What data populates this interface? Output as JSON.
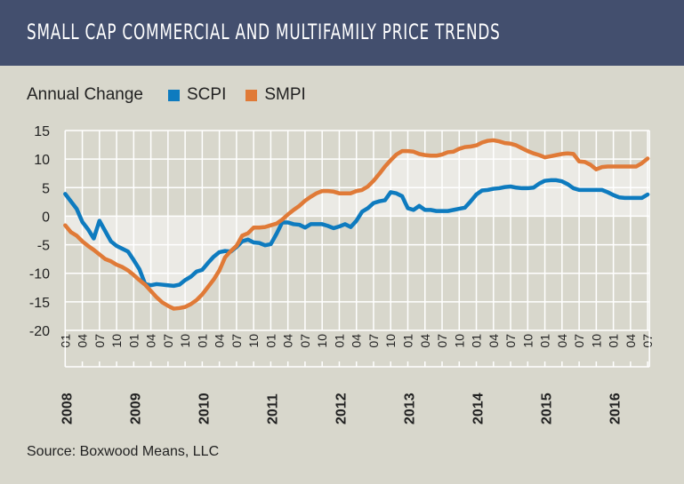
{
  "header": {
    "title": "SMALL CAP COMMERCIAL AND MULTIFAMILY PRICE TRENDS"
  },
  "legend": {
    "label": "Annual Change"
  },
  "source": "Source: Boxwood Means, LLC",
  "colors": {
    "header": "#434f6e",
    "background": "#d8d7cc",
    "scpi": "#0e7bbf",
    "smpi": "#e07a37",
    "band": "#ebeae5"
  },
  "chart_data": {
    "type": "line",
    "title": "SMALL CAP COMMERCIAL AND MULTIFAMILY PRICE TRENDS",
    "ylabel": "Annual Change",
    "ylim": [
      -20,
      15
    ],
    "yticks": [
      15,
      10,
      5,
      0,
      -5,
      -10,
      -15,
      -20
    ],
    "x_start": "2008-01",
    "x_end": "2016-07",
    "frequency": "monthly",
    "month_ticks": [
      "01",
      "04",
      "07",
      "10"
    ],
    "years": [
      "2008",
      "2009",
      "2010",
      "2011",
      "2012",
      "2013",
      "2014",
      "2015",
      "2016"
    ],
    "grid": true,
    "legend_position": "top-left",
    "series": [
      {
        "name": "SCPI",
        "color": "#0e7bbf",
        "values": [
          3.9,
          2.6,
          1.3,
          -1.0,
          -2.3,
          -3.9,
          -0.8,
          -2.6,
          -4.4,
          -5.2,
          -5.7,
          -6.2,
          -7.7,
          -9.3,
          -11.9,
          -12.1,
          -11.9,
          -12.0,
          -12.1,
          -12.2,
          -12.0,
          -11.2,
          -10.6,
          -9.7,
          -9.4,
          -8.2,
          -7.1,
          -6.3,
          -6.1,
          -6.2,
          -5.4,
          -4.4,
          -4.1,
          -4.6,
          -4.7,
          -5.1,
          -4.9,
          -3.1,
          -1.1,
          -1.1,
          -1.4,
          -1.5,
          -2.0,
          -1.4,
          -1.4,
          -1.4,
          -1.7,
          -2.1,
          -1.8,
          -1.4,
          -1.9,
          -0.8,
          0.8,
          1.4,
          2.3,
          2.6,
          2.8,
          4.2,
          4.0,
          3.5,
          1.4,
          1.1,
          1.8,
          1.1,
          1.1,
          0.9,
          0.9,
          0.9,
          1.1,
          1.3,
          1.5,
          2.6,
          3.8,
          4.5,
          4.6,
          4.8,
          4.9,
          5.1,
          5.2,
          5.0,
          4.9,
          4.9,
          5.0,
          5.7,
          6.2,
          6.3,
          6.3,
          6.1,
          5.6,
          4.9,
          4.6,
          4.6,
          4.6,
          4.6,
          4.6,
          4.2,
          3.7,
          3.3,
          3.2,
          3.2,
          3.2,
          3.2,
          3.8
        ]
      },
      {
        "name": "SMPI",
        "color": "#e07a37",
        "values": [
          -1.6,
          -2.8,
          -3.4,
          -4.4,
          -5.2,
          -5.9,
          -6.7,
          -7.5,
          -7.9,
          -8.5,
          -8.9,
          -9.5,
          -10.3,
          -11.2,
          -12.0,
          -13.1,
          -14.2,
          -15.1,
          -15.7,
          -16.2,
          -16.1,
          -15.9,
          -15.4,
          -14.7,
          -13.7,
          -12.4,
          -11.1,
          -9.5,
          -7.2,
          -6.1,
          -5.2,
          -3.4,
          -3.0,
          -2.0,
          -2.0,
          -1.9,
          -1.6,
          -1.3,
          -0.6,
          0.3,
          1.1,
          1.8,
          2.7,
          3.4,
          4.0,
          4.4,
          4.4,
          4.3,
          4.0,
          4.0,
          4.0,
          4.4,
          4.6,
          5.2,
          6.2,
          7.4,
          8.7,
          9.8,
          10.8,
          11.4,
          11.4,
          11.3,
          10.9,
          10.7,
          10.6,
          10.6,
          10.8,
          11.2,
          11.3,
          11.8,
          12.1,
          12.2,
          12.4,
          12.9,
          13.2,
          13.3,
          13.1,
          12.8,
          12.7,
          12.4,
          11.9,
          11.4,
          11.0,
          10.7,
          10.3,
          10.5,
          10.7,
          10.9,
          11.0,
          10.9,
          9.6,
          9.5,
          9.0,
          8.2,
          8.6,
          8.7,
          8.7,
          8.7,
          8.7,
          8.7,
          8.7,
          9.3,
          10.1
        ]
      }
    ]
  }
}
